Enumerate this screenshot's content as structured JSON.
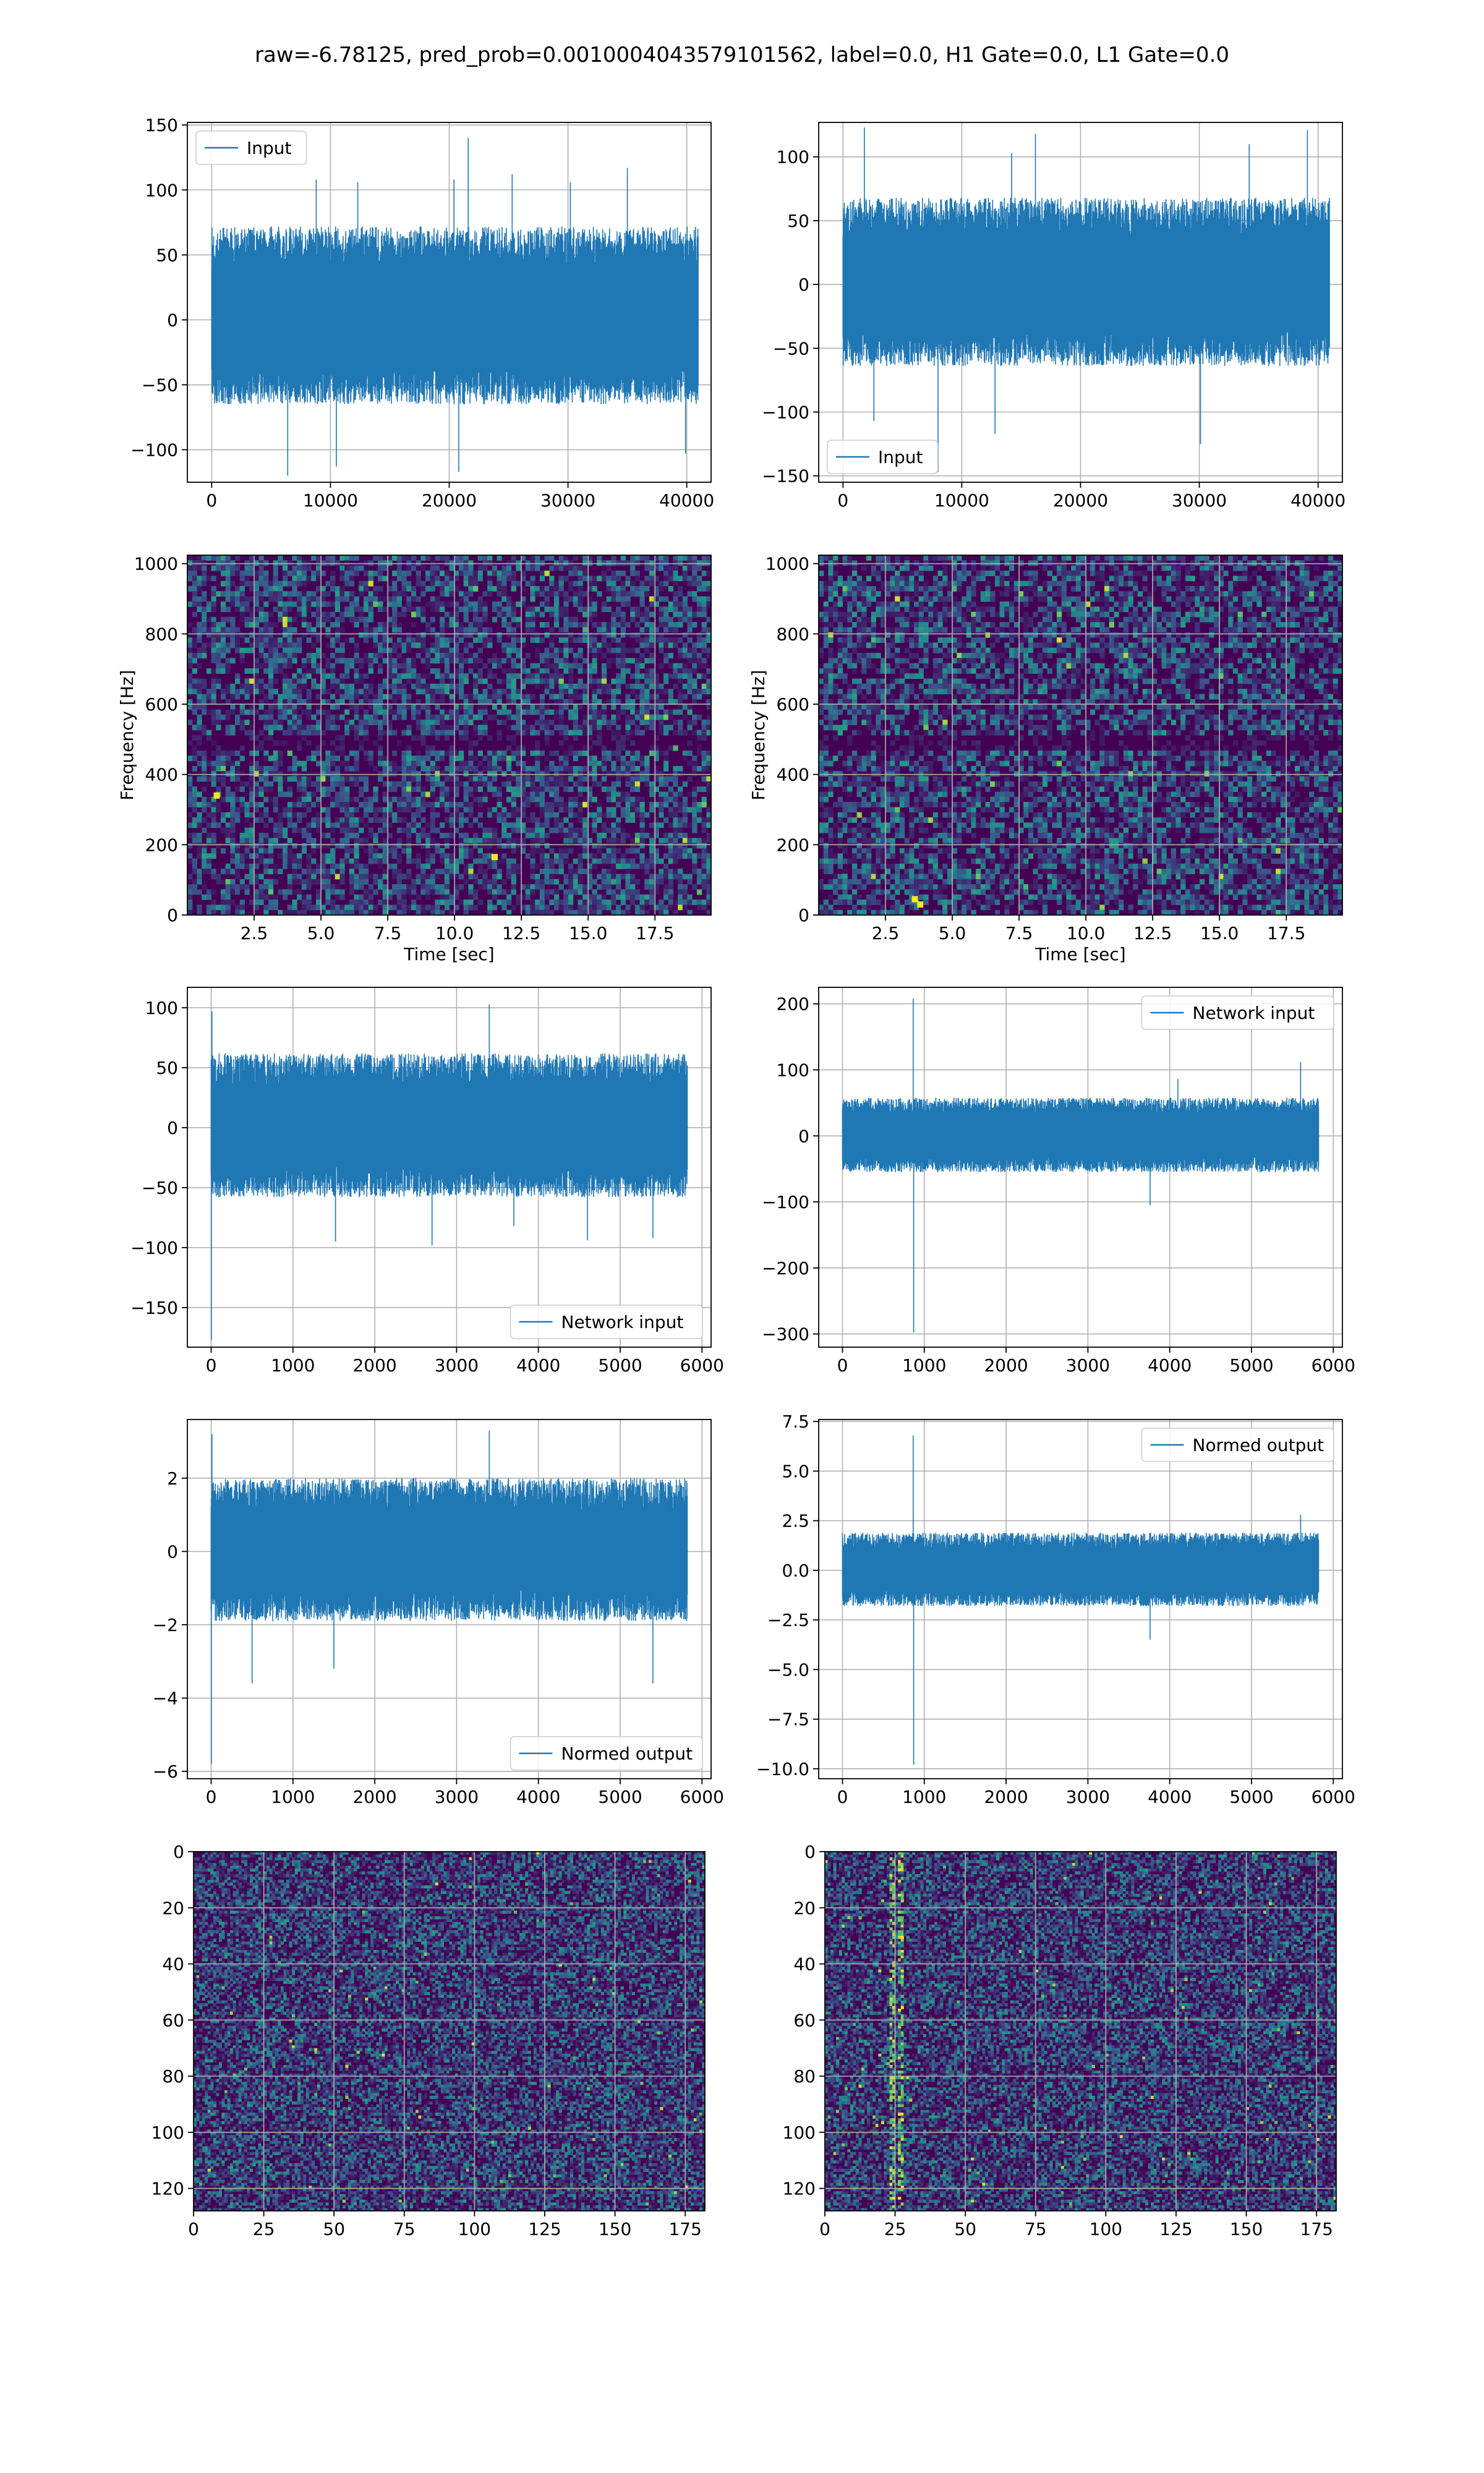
{
  "figure": {
    "suptitle": "raw=-6.78125, pred_prob=0.0010004043579101562, label=0.0, H1 Gate=0.0, L1 Gate=0.0"
  },
  "colors": {
    "line": "#1f77b4",
    "grid": "#b0b0b0",
    "viridis_low": "#440154",
    "viridis_mid": "#3b528b",
    "viridis_high": "#fde725"
  },
  "chart_data": [
    {
      "id": "h1_input",
      "type": "line",
      "legend": [
        "Input"
      ],
      "legend_loc": "upper left",
      "grid": true,
      "xlim": [
        -2048,
        42048
      ],
      "ylim": [
        -125,
        152
      ],
      "xticks": [
        0,
        10000,
        20000,
        30000,
        40000
      ],
      "yticks": [
        -100,
        -50,
        0,
        50,
        100,
        150
      ],
      "series": [
        {
          "name": "Input",
          "n": 40960,
          "x_range": [
            0,
            40960
          ],
          "band": [
            -65,
            72
          ],
          "min": -122,
          "max": 140,
          "spikes": [
            [
              6400,
              -120
            ],
            [
              8800,
              108
            ],
            [
              10500,
              -113
            ],
            [
              12300,
              106
            ],
            [
              20400,
              108
            ],
            [
              20800,
              -117
            ],
            [
              21600,
              140
            ],
            [
              25300,
              112
            ],
            [
              30200,
              106
            ],
            [
              35000,
              117
            ],
            [
              39900,
              -103
            ]
          ]
        }
      ]
    },
    {
      "id": "l1_input",
      "type": "line",
      "legend": [
        "Input"
      ],
      "legend_loc": "lower left",
      "grid": true,
      "xlim": [
        -2048,
        42048
      ],
      "ylim": [
        -155,
        127
      ],
      "xticks": [
        0,
        10000,
        20000,
        30000,
        40000
      ],
      "yticks": [
        -150,
        -100,
        -50,
        0,
        50,
        100
      ],
      "series": [
        {
          "name": "Input",
          "n": 40960,
          "x_range": [
            0,
            40960
          ],
          "band": [
            -64,
            68
          ],
          "min": -147,
          "max": 123,
          "spikes": [
            [
              1800,
              123
            ],
            [
              2600,
              -107
            ],
            [
              8000,
              -147
            ],
            [
              12800,
              -117
            ],
            [
              14200,
              103
            ],
            [
              16200,
              118
            ],
            [
              30100,
              -125
            ],
            [
              34200,
              110
            ],
            [
              39100,
              121
            ]
          ]
        }
      ]
    },
    {
      "id": "h1_spectrogram",
      "type": "heatmap",
      "xlabel": "Time [sec]",
      "ylabel": "Frequency [Hz]",
      "grid": true,
      "xlim": [
        0,
        19.6
      ],
      "ylim": [
        0,
        1024
      ],
      "xticks": [
        2.5,
        5.0,
        7.5,
        10.0,
        12.5,
        15.0,
        17.5
      ],
      "yticks": [
        0,
        200,
        400,
        600,
        800,
        1000
      ],
      "features": {
        "dark_band_hz": 500,
        "hot_spots": [
          [
            11.5,
            165
          ],
          [
            1.1,
            340
          ]
        ]
      }
    },
    {
      "id": "l1_spectrogram",
      "type": "heatmap",
      "xlabel": "Time [sec]",
      "ylabel": "Frequency [Hz]",
      "grid": true,
      "xlim": [
        0,
        19.6
      ],
      "ylim": [
        0,
        1024
      ],
      "xticks": [
        2.5,
        5.0,
        7.5,
        10.0,
        12.5,
        15.0,
        17.5
      ],
      "yticks": [
        0,
        200,
        400,
        600,
        800,
        1000
      ],
      "features": {
        "dark_band_hz": 500,
        "hot_spots": [
          [
            3.8,
            30
          ],
          [
            3.6,
            45
          ]
        ]
      }
    },
    {
      "id": "h1_network_input",
      "type": "line",
      "legend": [
        "Network input"
      ],
      "legend_loc": "lower right",
      "grid": true,
      "xlim": [
        -291,
        6111
      ],
      "ylim": [
        -183,
        117
      ],
      "xticks": [
        0,
        1000,
        2000,
        3000,
        4000,
        5000,
        6000
      ],
      "yticks": [
        -150,
        -100,
        -50,
        0,
        50,
        100
      ],
      "series": [
        {
          "name": "Network input",
          "n": 5820,
          "x_range": [
            0,
            5820
          ],
          "band": [
            -58,
            62
          ],
          "min": -177,
          "max": 103,
          "spikes": [
            [
              3,
              -177
            ],
            [
              10,
              97
            ],
            [
              1520,
              -95
            ],
            [
              2700,
              -98
            ],
            [
              3400,
              103
            ],
            [
              3700,
              -82
            ],
            [
              4600,
              -94
            ],
            [
              5400,
              -92
            ]
          ]
        }
      ]
    },
    {
      "id": "l1_network_input",
      "type": "line",
      "legend": [
        "Network input"
      ],
      "legend_loc": "upper right",
      "grid": true,
      "xlim": [
        -291,
        6111
      ],
      "ylim": [
        -320,
        225
      ],
      "xticks": [
        0,
        1000,
        2000,
        3000,
        4000,
        5000,
        6000
      ],
      "yticks": [
        -300,
        -200,
        -100,
        0,
        100,
        200
      ],
      "series": [
        {
          "name": "Network input",
          "n": 5820,
          "x_range": [
            0,
            5820
          ],
          "band": [
            -55,
            58
          ],
          "min": -298,
          "max": 208,
          "spikes": [
            [
              865,
              208
            ],
            [
              870,
              -298
            ],
            [
              3760,
              -105
            ],
            [
              4100,
              86
            ],
            [
              5600,
              112
            ]
          ]
        }
      ]
    },
    {
      "id": "h1_normed_output",
      "type": "line",
      "legend": [
        "Normed output"
      ],
      "legend_loc": "lower right",
      "grid": true,
      "xlim": [
        -291,
        6111
      ],
      "ylim": [
        -6.2,
        3.6
      ],
      "xticks": [
        0,
        1000,
        2000,
        3000,
        4000,
        5000,
        6000
      ],
      "yticks": [
        -6,
        -4,
        -2,
        0,
        2
      ],
      "series": [
        {
          "name": "Normed output",
          "n": 5820,
          "x_range": [
            0,
            5820
          ],
          "band": [
            -1.9,
            2.0
          ],
          "min": -5.8,
          "max": 3.3,
          "spikes": [
            [
              3,
              -5.8
            ],
            [
              10,
              3.2
            ],
            [
              500,
              -3.6
            ],
            [
              1500,
              -3.2
            ],
            [
              3400,
              3.3
            ],
            [
              5400,
              -3.6
            ]
          ]
        }
      ]
    },
    {
      "id": "l1_normed_output",
      "type": "line",
      "legend": [
        "Normed output"
      ],
      "legend_loc": "upper right",
      "grid": true,
      "xlim": [
        -291,
        6111
      ],
      "ylim": [
        -10.5,
        7.6
      ],
      "xticks": [
        0,
        1000,
        2000,
        3000,
        4000,
        5000,
        6000
      ],
      "yticks": [
        -10.0,
        -7.5,
        -5.0,
        -2.5,
        0.0,
        2.5,
        5.0,
        7.5
      ],
      "series": [
        {
          "name": "Normed output",
          "n": 5820,
          "x_range": [
            0,
            5820
          ],
          "band": [
            -1.8,
            1.9
          ],
          "min": -9.8,
          "max": 6.8,
          "spikes": [
            [
              865,
              6.8
            ],
            [
              870,
              -9.8
            ],
            [
              3760,
              -3.5
            ],
            [
              5600,
              2.8
            ]
          ]
        }
      ]
    },
    {
      "id": "h1_image",
      "type": "heatmap",
      "grid": true,
      "xlim": [
        0,
        182
      ],
      "ylim": [
        128,
        0
      ],
      "xticks": [
        0,
        25,
        50,
        75,
        100,
        125,
        150,
        175
      ],
      "yticks": [
        0,
        20,
        40,
        60,
        80,
        100,
        120
      ],
      "features": {
        "bright_columns": []
      }
    },
    {
      "id": "l1_image",
      "type": "heatmap",
      "grid": true,
      "xlim": [
        0,
        182
      ],
      "ylim": [
        128,
        0
      ],
      "xticks": [
        0,
        25,
        50,
        75,
        100,
        125,
        150,
        175
      ],
      "yticks": [
        0,
        20,
        40,
        60,
        80,
        100,
        120
      ],
      "features": {
        "bright_columns": [
          23,
          24,
          26,
          27
        ]
      }
    }
  ]
}
